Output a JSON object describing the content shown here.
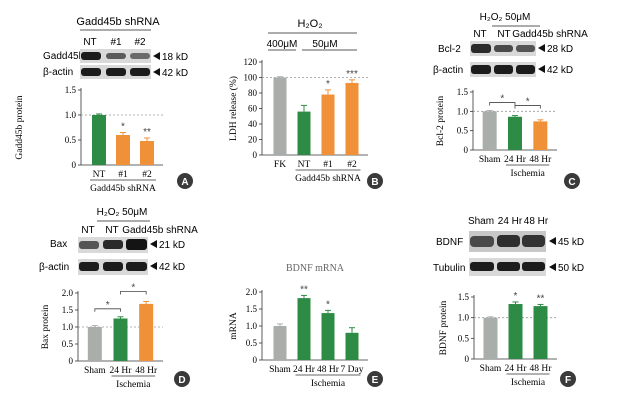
{
  "colors": {
    "gray": "#a9aeaa",
    "green": "#2e8b45",
    "orange": "#f0913a",
    "axis": "#333333",
    "badge": "#3a3a3a"
  },
  "blot_icon": "western-blot-band",
  "panels": {
    "A": {
      "badge": "A",
      "header": "Gadd45b shRNA",
      "lanes": [
        "NT",
        "#1",
        "#2"
      ],
      "blots": [
        {
          "label": "Gadd45b",
          "marker": "18 kD"
        },
        {
          "label": "β-actin",
          "marker": "42 kD"
        }
      ]
    },
    "B": {
      "badge": "B",
      "header": "H₂O₂",
      "conc_left": "400μM",
      "conc_right": "50μM"
    },
    "C": {
      "badge": "C",
      "header": "H₂O₂ 50μM",
      "lanes": [
        "NT",
        "NT",
        "Gadd45b shRNA"
      ],
      "blots": [
        {
          "label": "Bcl-2",
          "marker": "28 kD"
        },
        {
          "label": "β-actin",
          "marker": "42 kD"
        }
      ]
    },
    "D": {
      "badge": "D",
      "header": "H₂O₂ 50μM",
      "lanes": [
        "NT",
        "NT",
        "Gadd45b shRNA"
      ],
      "blots": [
        {
          "label": "Bax",
          "marker": "21 kD"
        },
        {
          "label": "β-actin",
          "marker": "42 kD"
        }
      ]
    },
    "E": {
      "badge": "E"
    },
    "F": {
      "badge": "F",
      "lanes": [
        "Sham",
        "24 Hr",
        "48 Hr"
      ],
      "blots": [
        {
          "label": "BDNF",
          "marker": "45 kD"
        },
        {
          "label": "Tubulin",
          "marker": "50 kD"
        }
      ]
    }
  },
  "chart_data": [
    {
      "id": "A",
      "type": "bar",
      "title": "",
      "ylabel": "Gadd45b protein",
      "ylim": [
        0,
        1.5
      ],
      "yticks": [
        "0",
        "0.5",
        "1.0",
        "1.5"
      ],
      "categories": [
        "NT",
        "#1",
        "#2"
      ],
      "values": [
        1.0,
        0.6,
        0.48
      ],
      "errors": [
        0.02,
        0.05,
        0.06
      ],
      "colors": [
        "green",
        "orange",
        "orange"
      ],
      "sig": [
        "",
        "*",
        "**"
      ],
      "group_label": "Gadd45b shRNA",
      "group_span": [
        0,
        2
      ],
      "reference_line": 1.0,
      "brackets": []
    },
    {
      "id": "B",
      "type": "bar",
      "title": "",
      "ylabel": "LDH release (%)",
      "ylim": [
        0,
        120
      ],
      "yticks": [
        "0",
        "20",
        "40",
        "60",
        "80",
        "100",
        "120"
      ],
      "categories": [
        "FK",
        "NT",
        "#1",
        "#2"
      ],
      "values": [
        100,
        56,
        78,
        93
      ],
      "errors": [
        1,
        8,
        6,
        4
      ],
      "colors": [
        "gray",
        "green",
        "orange",
        "orange"
      ],
      "sig": [
        "",
        "",
        "*",
        "***"
      ],
      "group_label": "Gadd45b shRNA",
      "group_span": [
        1,
        3
      ],
      "reference_line": 100,
      "brackets": []
    },
    {
      "id": "C",
      "type": "bar",
      "title": "",
      "ylabel": "Bcl-2 protein",
      "ylim": [
        0,
        1.5
      ],
      "yticks": [
        "0",
        "0.5",
        "1.0",
        "1.5"
      ],
      "categories": [
        "Sham",
        "24 Hr",
        "48 Hr"
      ],
      "values": [
        1.0,
        0.86,
        0.74
      ],
      "errors": [
        0.02,
        0.03,
        0.04
      ],
      "colors": [
        "gray",
        "green",
        "orange"
      ],
      "sig": [
        "",
        "",
        ""
      ],
      "group_label": "Ischemia",
      "group_span": [
        1,
        2
      ],
      "reference_line": 1.0,
      "brackets": [
        {
          "from": 0,
          "to": 1,
          "label": "*"
        },
        {
          "from": 1,
          "to": 2,
          "label": "*"
        }
      ]
    },
    {
      "id": "D",
      "type": "bar",
      "title": "",
      "ylabel": "Bax protein",
      "ylim": [
        0,
        2.0
      ],
      "yticks": [
        "0",
        "0.5",
        "1.0",
        "1.5",
        "2.0"
      ],
      "categories": [
        "Sham",
        "24 Hr",
        "48 Hr"
      ],
      "values": [
        1.0,
        1.25,
        1.68
      ],
      "errors": [
        0.04,
        0.05,
        0.07
      ],
      "colors": [
        "gray",
        "green",
        "orange"
      ],
      "sig": [
        "",
        "",
        ""
      ],
      "group_label": "Ischemia",
      "group_span": [
        1,
        2
      ],
      "reference_line": 1.0,
      "brackets": [
        {
          "from": 0,
          "to": 1,
          "label": "*"
        },
        {
          "from": 1,
          "to": 2,
          "label": "*"
        }
      ]
    },
    {
      "id": "E",
      "type": "bar",
      "title": "BDNF mRNA",
      "ylabel": "mRNA",
      "ylim": [
        0,
        2.0
      ],
      "yticks": [
        "0",
        "0.5",
        "1.0",
        "1.5",
        "2.0"
      ],
      "categories": [
        "Sham",
        "24 Hr",
        "48 Hr",
        "7 Day"
      ],
      "values": [
        1.0,
        1.82,
        1.38,
        0.8
      ],
      "errors": [
        0.06,
        0.08,
        0.08,
        0.15
      ],
      "colors": [
        "gray",
        "green",
        "green",
        "green"
      ],
      "sig": [
        "",
        "**",
        "*",
        ""
      ],
      "group_label": "Ischemia",
      "group_span": [
        1,
        3
      ],
      "reference_line": null,
      "brackets": []
    },
    {
      "id": "F",
      "type": "bar",
      "title": "",
      "ylabel": "BDNF protein",
      "ylim": [
        0,
        1.5
      ],
      "yticks": [
        "0",
        "0.5",
        "1.0",
        "1.5"
      ],
      "categories": [
        "Sham",
        "24 Hr",
        "48 Hr"
      ],
      "values": [
        1.0,
        1.33,
        1.28
      ],
      "errors": [
        0.02,
        0.05,
        0.04
      ],
      "colors": [
        "gray",
        "green",
        "green"
      ],
      "sig": [
        "",
        "*",
        "**"
      ],
      "group_label": "Ischemia",
      "group_span": [
        1,
        2
      ],
      "reference_line": 1.0,
      "brackets": []
    }
  ]
}
